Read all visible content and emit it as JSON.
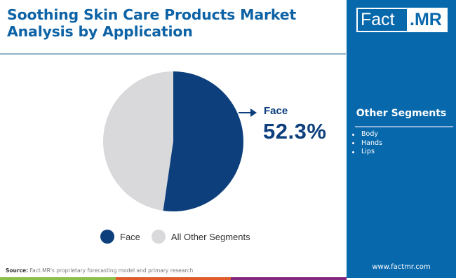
{
  "header": {
    "title_line1": "Soothing Skin Care Products Market",
    "title_line2": "Analysis by Application"
  },
  "logo": {
    "part1": "Fact",
    "part2": ".MR"
  },
  "side_panel": {
    "heading": "Other Segments",
    "items": [
      "Body",
      "Hands",
      "Lips"
    ],
    "website": "www.factmr.com"
  },
  "callout": {
    "label": "Face",
    "value": "52.3%"
  },
  "legend": [
    {
      "label": "Face",
      "color": "#0d3f7d"
    },
    {
      "label": "All Other Segments",
      "color": "#d9d9dc"
    }
  ],
  "footer": {
    "source_label": "Source:",
    "source_text": " Fact.MR's proprietary forecasting model and primary research",
    "bar_colors": [
      "#8cc04b",
      "#e05a2b",
      "#85287f"
    ]
  },
  "colors": {
    "primary_blue": "#0868ac",
    "face_slice": "#0d3f7d",
    "other_slice": "#d9d9dc",
    "title": "#0d63a5"
  },
  "chart_data": {
    "type": "pie",
    "title": "Soothing Skin Care Products Market Analysis by Application",
    "categories": [
      "Face",
      "All Other Segments"
    ],
    "values": [
      52.3,
      47.7
    ],
    "colors": [
      "#0d3f7d",
      "#d9d9dc"
    ],
    "annotations": [
      {
        "label": "Face",
        "value": "52.3%"
      }
    ],
    "legend_position": "bottom",
    "other_segments": [
      "Body",
      "Hands",
      "Lips"
    ]
  }
}
